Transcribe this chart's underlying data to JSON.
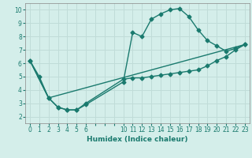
{
  "xlabel": "Humidex (Indice chaleur)",
  "bg_color": "#d4eeea",
  "grid_color": "#c0dcd8",
  "line_color": "#1a7a6e",
  "xlim": [
    -0.5,
    23.5
  ],
  "ylim": [
    1.5,
    10.5
  ],
  "xtick_positions": [
    0,
    1,
    2,
    3,
    4,
    5,
    6,
    7,
    8,
    9,
    10,
    11,
    12,
    13,
    14,
    15,
    16,
    17,
    18,
    19,
    20,
    21,
    22,
    23
  ],
  "xtick_labels": [
    "0",
    "1",
    "2",
    "3",
    "4",
    "5",
    "6",
    "",
    "",
    "",
    "10",
    "11",
    "12",
    "13",
    "14",
    "15",
    "16",
    "17",
    "18",
    "19",
    "20",
    "21",
    "22",
    "23"
  ],
  "yticks": [
    2,
    3,
    4,
    5,
    6,
    7,
    8,
    9,
    10
  ],
  "line1_x": [
    0,
    1,
    2,
    3,
    4,
    5,
    6,
    10,
    11,
    12,
    13,
    14,
    15,
    16,
    17,
    18,
    19,
    20,
    21,
    22,
    23
  ],
  "line1_y": [
    6.2,
    5.0,
    3.4,
    2.7,
    2.5,
    2.5,
    2.9,
    4.6,
    8.3,
    8.0,
    9.3,
    9.7,
    10.0,
    10.1,
    9.5,
    8.5,
    7.7,
    7.3,
    6.9,
    7.1,
    7.4
  ],
  "line2_x": [
    0,
    2,
    3,
    4,
    5,
    6,
    10,
    11,
    12,
    13,
    14,
    15,
    16,
    17,
    18,
    19,
    20,
    21,
    22,
    23
  ],
  "line2_y": [
    6.2,
    3.4,
    2.7,
    2.5,
    2.5,
    3.0,
    4.8,
    4.9,
    4.9,
    5.0,
    5.1,
    5.2,
    5.3,
    5.4,
    5.5,
    5.8,
    6.2,
    6.5,
    7.0,
    7.4
  ],
  "line3_x": [
    0,
    2,
    23
  ],
  "line3_y": [
    6.2,
    3.4,
    7.4
  ],
  "marker": "D",
  "marker_size": 2.5,
  "line_width": 1.0
}
